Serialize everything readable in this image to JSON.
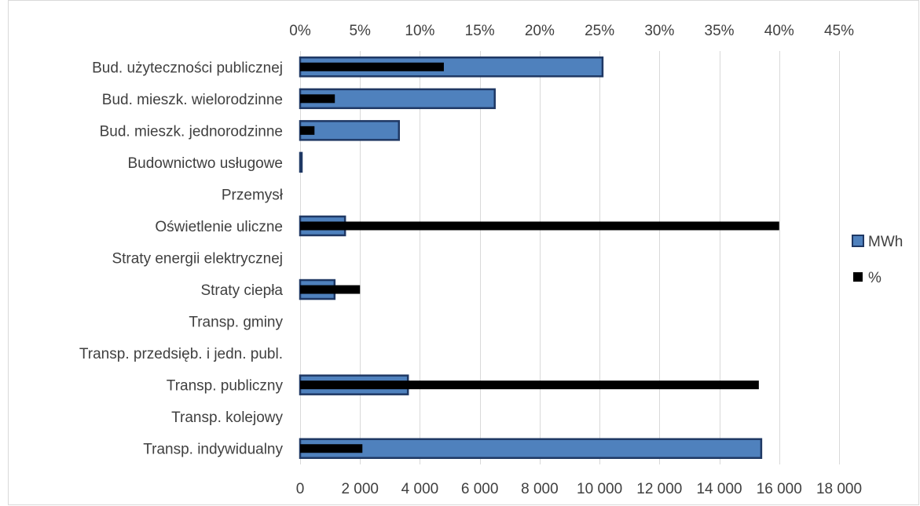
{
  "chart_data": {
    "type": "bar",
    "orientation": "horizontal",
    "categories": [
      "Bud. użyteczności publicznej",
      "Bud. mieszk. wielorodzinne",
      "Bud. mieszk. jednorodzinne",
      "Budownictwo usługowe",
      "Przemysł",
      "Oświetlenie uliczne",
      "Straty energii elektrycznej",
      "Straty ciepła",
      "Transp. gminy",
      "Transp. przedsięb. i jedn. publ.",
      "Transp. publiczny",
      "Transp. kolejowy",
      "Transp. indywidualny"
    ],
    "series": [
      {
        "name": "MWh",
        "axis": "bottom",
        "color": "#4f81bd",
        "border": "#1f3864",
        "values": [
          10100,
          6500,
          3300,
          50,
          0,
          1500,
          0,
          1150,
          0,
          0,
          3600,
          0,
          15400
        ]
      },
      {
        "name": "%",
        "axis": "top",
        "color": "#000000",
        "values": [
          12.0,
          2.9,
          1.2,
          0,
          0,
          40.0,
          0,
          5.0,
          0,
          0,
          38.3,
          0,
          5.2
        ]
      }
    ],
    "x_bottom": {
      "min": 0,
      "max": 18000,
      "step": 2000,
      "tick_labels": [
        "0",
        "2 000",
        "4 000",
        "6 000",
        "8 000",
        "10 000",
        "12 000",
        "14 000",
        "16 000",
        "18 000"
      ]
    },
    "x_top": {
      "min": 0,
      "max": 45,
      "step": 5,
      "tick_labels": [
        "0%",
        "5%",
        "10%",
        "15%",
        "20%",
        "25%",
        "30%",
        "35%",
        "40%",
        "45%"
      ]
    },
    "grid": true,
    "legend_position": "right",
    "legend": [
      {
        "label": "MWh",
        "color": "#4f81bd",
        "border": "#1f3864"
      },
      {
        "label": "%",
        "color": "#000000"
      }
    ]
  }
}
